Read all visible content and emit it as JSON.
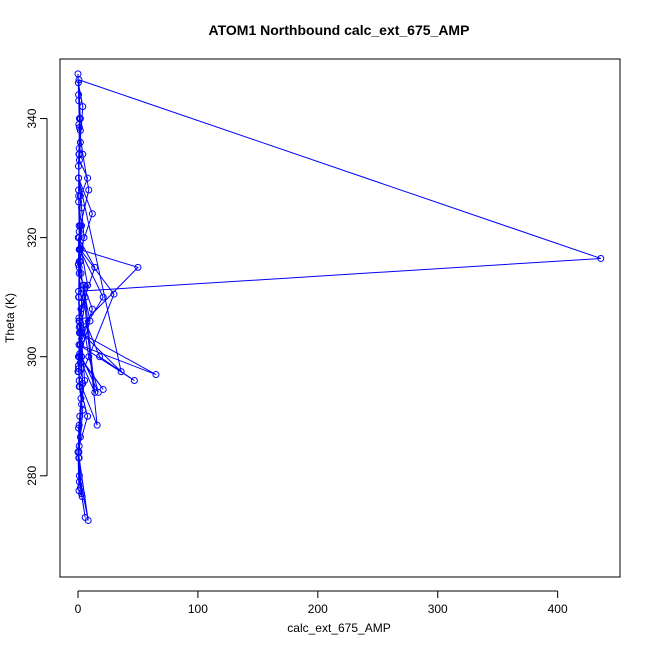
{
  "chart_data": {
    "type": "line",
    "title": "ATOM1 Northbound calc_ext_675_AMP",
    "xlabel": "calc_ext_675_AMP",
    "ylabel": "Theta (K)",
    "xlim": [
      -15,
      452
    ],
    "ylim": [
      263,
      350
    ],
    "x_ticks": [
      0,
      100,
      200,
      300,
      400
    ],
    "y_ticks": [
      280,
      300,
      320,
      340
    ],
    "grid": false,
    "line_style": "both lines and open-circle markers",
    "color": "#0000ff",
    "series": [
      {
        "x": [
          0.0,
          0.6,
          1.2,
          0.4,
          2.0,
          1.0,
          0.3,
          3.0,
          0.8,
          1.5,
          0.5,
          2.5,
          1.0,
          0.0,
          0.8,
          3.5,
          1.2,
          0.6,
          2.0,
          4.0,
          1.0,
          0.4,
          1.8,
          0.8,
          6.0,
          2.5,
          1.0,
          3.0,
          0.5,
          8.0,
          1.2,
          2.0,
          0.7,
          4.0,
          9.0,
          2.0,
          1.0,
          0.5,
          3.0,
          5.5,
          1.5,
          0.8,
          2.0,
          6.0,
          3.0,
          1.0,
          8.5,
          1.2,
          0.5,
          4.0,
          2.0,
          12.0,
          1.0,
          0.3,
          14.0,
          2.5,
          9.0,
          17.0,
          3.0,
          1.2,
          5.0,
          14.0,
          0.7,
          21.0,
          1.5,
          10.0,
          4.0,
          16.0,
          1.0,
          30.0,
          2.0,
          12.0,
          0.5,
          36.0,
          3.0,
          21.0,
          1.5,
          50.0,
          6.0,
          18.0,
          47.0,
          0.8,
          65.0,
          2.0,
          8.0,
          1.0,
          0.6,
          1.0,
          4.0,
          0.3,
          2.0,
          1.0,
          0.5,
          3.0,
          5.0,
          1.0,
          0.8,
          2.0,
          0.4,
          1.5,
          8.0,
          1.0,
          3.0,
          0.5,
          1.2,
          0.8,
          2.0,
          1.0,
          0.5,
          0.8,
          1.2,
          0.5,
          2.0,
          0.8,
          436.0,
          0.5,
          1.0,
          2.0,
          0.0
        ],
        "y": [
          347.5,
          343.0,
          338.5,
          332.0,
          327.0,
          321.0,
          315.5,
          309.0,
          306.5,
          300.5,
          297.5,
          293.0,
          288.5,
          284.0,
          277.5,
          276.5,
          279.0,
          283.0,
          286.5,
          291.0,
          295.0,
          298.5,
          302.0,
          306.0,
          310.0,
          314.0,
          318.0,
          322.0,
          326.0,
          330.0,
          333.0,
          336.0,
          339.0,
          334.0,
          328.0,
          322.0,
          316.0,
          310.0,
          303.0,
          296.0,
          290.0,
          284.0,
          278.0,
          273.0,
          277.0,
          283.0,
          272.5,
          280.0,
          288.0,
          295.5,
          302.0,
          308.0,
          314.0,
          320.0,
          315.0,
          308.0,
          300.0,
          294.0,
          300.0,
          306.0,
          312.0,
          294.0,
          300.0,
          294.5,
          300.0,
          306.0,
          312.0,
          288.5,
          296.0,
          310.5,
          318.0,
          324.0,
          330.0,
          297.5,
          304.0,
          310.0,
          318.0,
          315.0,
          306.0,
          300.0,
          296.0,
          302.0,
          297.0,
          304.0,
          312.0,
          320.0,
          327.0,
          334.0,
          342.0,
          346.0,
          340.0,
          335.0,
          330.0,
          325.0,
          320.0,
          315.0,
          310.0,
          305.0,
          300.0,
          295.0,
          290.0,
          285.0,
          292.0,
          298.0,
          304.0,
          310.0,
          316.0,
          322.0,
          328.0,
          334.0,
          340.0,
          344.0,
          338.0,
          346.5,
          316.5,
          311.0,
          305.0,
          299.0,
          297.5
        ]
      }
    ]
  }
}
